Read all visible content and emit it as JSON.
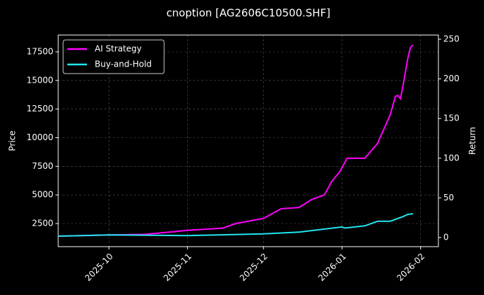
{
  "chart_data": {
    "type": "line",
    "title": "cnoption [AG2606C10500.SHF]",
    "y_label": "Price",
    "y2_label": "Return",
    "xlim": [
      "2025-09-11",
      "2026-02-08"
    ],
    "xticks": [
      "2025-10",
      "2025-11",
      "2025-12",
      "2026-01",
      "2026-02"
    ],
    "ylim": [
      480,
      18970
    ],
    "yticks": [
      2500,
      5000,
      7500,
      10000,
      12500,
      15000,
      17500
    ],
    "y2lim": [
      -11.5,
      255.3
    ],
    "y2ticks": [
      0,
      50,
      100,
      150,
      200,
      250
    ],
    "grid": true,
    "legend": "upper left",
    "series": [
      {
        "name": "AI Strategy",
        "color": "#ff00ff",
        "x": [
          "2025-09-11",
          "2025-10-01",
          "2025-10-15",
          "2025-10-20",
          "2025-11-01",
          "2025-11-15",
          "2025-11-20",
          "2025-12-01",
          "2025-12-08",
          "2025-12-15",
          "2025-12-20",
          "2025-12-25",
          "2025-12-28",
          "2025-12-31",
          "2026-01-03",
          "2026-01-10",
          "2026-01-15",
          "2026-01-20",
          "2026-01-22",
          "2026-01-23",
          "2026-01-24",
          "2026-01-25",
          "2026-01-27",
          "2026-01-28",
          "2026-01-29"
        ],
        "values": [
          1400,
          1500,
          1550,
          1650,
          1900,
          2100,
          2500,
          2950,
          3800,
          3900,
          4600,
          5000,
          6200,
          7000,
          8200,
          8200,
          9500,
          12000,
          13600,
          13700,
          13400,
          14500,
          17000,
          17900,
          18100
        ]
      },
      {
        "name": "Buy-and-Hold",
        "color": "#22e5f0",
        "x": [
          "2025-09-11",
          "2025-10-01",
          "2025-11-01",
          "2025-12-01",
          "2025-12-15",
          "2026-01-01",
          "2026-01-02",
          "2026-01-10",
          "2026-01-15",
          "2026-01-20",
          "2026-01-25",
          "2026-01-27",
          "2026-01-29"
        ],
        "values": [
          1400,
          1500,
          1450,
          1600,
          1750,
          2200,
          2100,
          2300,
          2700,
          2700,
          3100,
          3300,
          3350
        ]
      }
    ]
  }
}
